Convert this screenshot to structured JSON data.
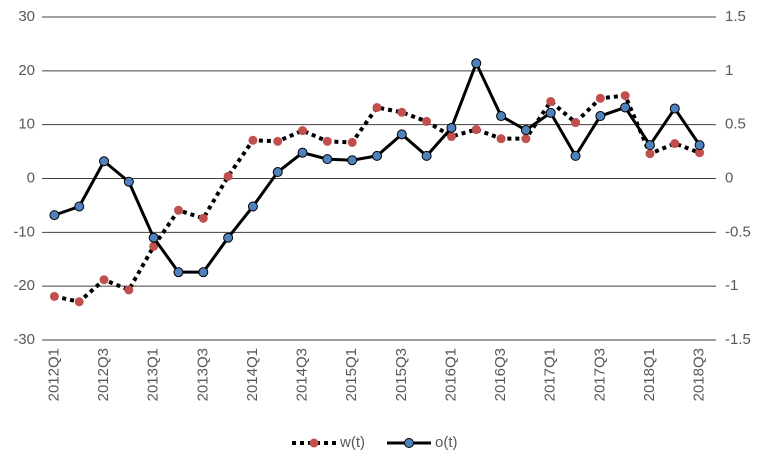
{
  "chart_data": {
    "type": "line",
    "categories": [
      "2012Q1",
      null,
      "2012Q3",
      null,
      "2013Q1",
      null,
      "2013Q3",
      null,
      "2014Q1",
      null,
      "2014Q3",
      null,
      "2015Q1",
      null,
      "2015Q3",
      null,
      "2016Q1",
      null,
      "2016Q3",
      null,
      "2017Q1",
      null,
      "2017Q3",
      null,
      "2018Q1",
      null,
      "2018Q3"
    ],
    "series": [
      {
        "name": "w(t)",
        "color": "#c0504d",
        "line_color": "#000000",
        "dash": "dotted",
        "values": [
          -21.9,
          -22.9,
          -18.8,
          -20.7,
          -12.6,
          -5.9,
          -7.4,
          0.4,
          7.1,
          6.9,
          8.9,
          6.9,
          6.7,
          13.2,
          12.3,
          10.6,
          7.8,
          9.1,
          7.4,
          7.4,
          14.3,
          10.4,
          14.9,
          15.4,
          4.6,
          6.5,
          4.8
        ]
      },
      {
        "name": "o(t)",
        "color": "#4f81bd",
        "line_color": "#000000",
        "dash": "solid",
        "axis": "y2",
        "values": [
          -0.34,
          -0.26,
          0.16,
          -0.03,
          -0.55,
          -0.87,
          -0.87,
          -0.55,
          -0.26,
          0.06,
          0.24,
          0.18,
          0.17,
          0.21,
          0.41,
          0.21,
          0.47,
          1.07,
          0.58,
          0.45,
          0.61,
          0.21,
          0.58,
          0.66,
          0.31,
          0.65,
          0.31
        ]
      }
    ],
    "ylim": [
      -30,
      30
    ],
    "yticks": [
      -30,
      -20,
      -10,
      0,
      10,
      20,
      30
    ],
    "y2lim": [
      -1.5,
      1.5
    ],
    "y2ticks": [
      -1.5,
      -1,
      -0.5,
      0,
      0.5,
      1,
      1.5
    ],
    "grid": true,
    "legend": "bottom"
  }
}
